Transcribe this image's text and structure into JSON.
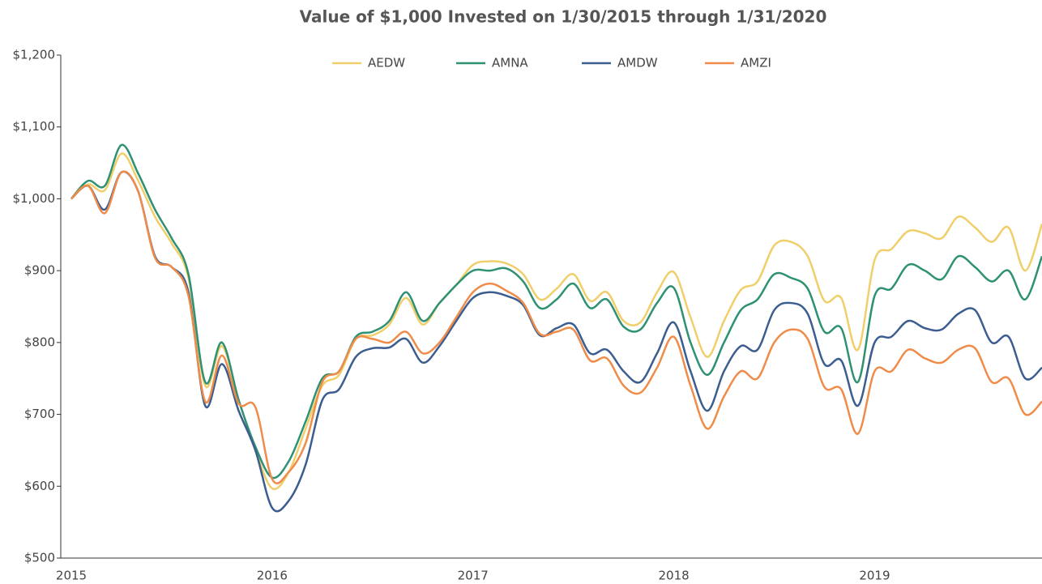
{
  "chart_data": {
    "type": "line",
    "title": "Value of $1,000 Invested on 1/30/2015 through 1/31/2020",
    "categories": [
      "2015",
      null,
      null,
      null,
      null,
      null,
      null,
      null,
      null,
      null,
      null,
      null,
      "2016",
      null,
      null,
      null,
      null,
      null,
      null,
      null,
      null,
      null,
      null,
      null,
      "2017",
      null,
      null,
      null,
      null,
      null,
      null,
      null,
      null,
      null,
      null,
      null,
      "2018",
      null,
      null,
      null,
      null,
      null,
      null,
      null,
      null,
      null,
      null,
      null,
      "2019",
      null,
      null,
      null,
      null,
      null,
      null,
      null,
      null,
      null,
      null
    ],
    "ylim": [
      500,
      1200
    ],
    "yticks": [
      {
        "value": 500,
        "label": "$500"
      },
      {
        "value": 600,
        "label": "$600"
      },
      {
        "value": 700,
        "label": "$700"
      },
      {
        "value": 800,
        "label": "$800"
      },
      {
        "value": 900,
        "label": "$900"
      },
      {
        "value": 1000,
        "label": "$1,000"
      },
      {
        "value": 1100,
        "label": "$1,100"
      },
      {
        "value": 1200,
        "label": "$1,200"
      }
    ],
    "grid": false,
    "legend": "top",
    "series": [
      {
        "name": "AEDW",
        "color": "#f0cf6b",
        "values": [
          1000,
          1020,
          1012,
          1063,
          1025,
          975,
          938,
          890,
          740,
          795,
          720,
          650,
          597,
          620,
          680,
          740,
          755,
          805,
          810,
          825,
          862,
          825,
          855,
          880,
          908,
          913,
          910,
          895,
          860,
          875,
          895,
          858,
          870,
          830,
          828,
          870,
          898,
          835,
          780,
          830,
          873,
          885,
          935,
          940,
          920,
          858,
          862,
          790,
          915,
          930,
          955,
          952,
          945,
          975,
          960,
          940,
          960,
          900,
          965
        ]
      },
      {
        "name": "AMNA",
        "color": "#2e9173",
        "values": [
          1000,
          1025,
          1018,
          1075,
          1035,
          985,
          945,
          895,
          745,
          800,
          720,
          655,
          612,
          635,
          690,
          750,
          760,
          808,
          815,
          830,
          870,
          830,
          855,
          880,
          900,
          900,
          903,
          885,
          848,
          860,
          882,
          848,
          860,
          822,
          818,
          855,
          876,
          800,
          755,
          800,
          845,
          860,
          895,
          890,
          875,
          815,
          820,
          745,
          865,
          875,
          908,
          900,
          888,
          920,
          905,
          885,
          900,
          860,
          920
        ]
      },
      {
        "name": "AMDW",
        "color": "#3b5d8f",
        "values": [
          1000,
          1018,
          985,
          1037,
          1010,
          920,
          905,
          870,
          712,
          770,
          705,
          650,
          570,
          580,
          630,
          720,
          735,
          780,
          792,
          793,
          805,
          772,
          795,
          830,
          862,
          870,
          865,
          852,
          810,
          820,
          825,
          785,
          790,
          760,
          745,
          785,
          828,
          760,
          705,
          760,
          795,
          790,
          845,
          855,
          840,
          770,
          775,
          712,
          800,
          808,
          830,
          820,
          818,
          840,
          845,
          800,
          808,
          750,
          765
        ]
      },
      {
        "name": "AMZI",
        "color": "#ef8c4a",
        "values": [
          1000,
          1018,
          980,
          1037,
          1010,
          918,
          905,
          865,
          718,
          782,
          715,
          710,
          610,
          620,
          660,
          745,
          760,
          805,
          805,
          800,
          815,
          785,
          800,
          835,
          870,
          882,
          872,
          855,
          812,
          815,
          818,
          775,
          778,
          740,
          730,
          765,
          808,
          740,
          680,
          725,
          760,
          750,
          800,
          818,
          805,
          738,
          735,
          673,
          760,
          760,
          790,
          778,
          772,
          790,
          792,
          745,
          750,
          700,
          718
        ]
      }
    ]
  }
}
